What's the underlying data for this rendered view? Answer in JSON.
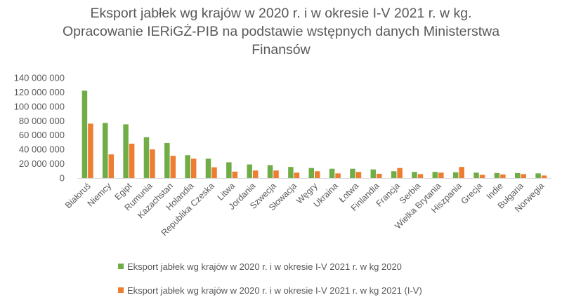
{
  "chart_data": {
    "type": "bar",
    "title_lines": [
      "Eksport jabłek wg krajów w 2020 r. i w okresie I-V 2021 r. w kg.",
      "Opracowanie IERiGŻ-PIB na podstawie wstępnych danych Ministerstwa",
      "Finansów"
    ],
    "xlabel": "",
    "ylabel": "",
    "ylim": [
      0,
      140000000
    ],
    "yticks": [
      0,
      20000000,
      40000000,
      60000000,
      80000000,
      100000000,
      120000000,
      140000000
    ],
    "ytick_labels": [
      "0",
      "20 000 000",
      "40 000 000",
      "60 000 000",
      "80 000 000",
      "100 000 000",
      "120 000 000",
      "140 000 000"
    ],
    "grid": false,
    "legend_position": "bottom",
    "categories": [
      "Białoruś",
      "Niemcy",
      "Egipt",
      "Rumunia",
      "Kazachstan",
      "Holandia",
      "Republika Czeska",
      "Litwa",
      "Jordania",
      "Szwecja",
      "Słowacja",
      "Węgry",
      "Ukraina",
      "Łotwa",
      "Finlandia",
      "Francja",
      "Serbia",
      "Wielka Brytania",
      "Hiszpania",
      "Grecja",
      "Indie",
      "Bułgaria",
      "Norwegia"
    ],
    "series": [
      {
        "name": "Eksport jabłek wg krajów w 2020 r. i w okresie I-V 2021 r. w kg 2020",
        "color": "#70ad47",
        "values": [
          122000000,
          77000000,
          75000000,
          57000000,
          49000000,
          32000000,
          27000000,
          22000000,
          19000000,
          18000000,
          15500000,
          14000000,
          13000000,
          13000000,
          12000000,
          9500000,
          8500000,
          8500000,
          8000000,
          7500000,
          7000000,
          7000000,
          6500000
        ]
      },
      {
        "name": "Eksport jabłek wg krajów w 2020 r. i w okresie I-V 2021 r. w kg 2021 (I-V)",
        "color": "#ed7d31",
        "values": [
          76000000,
          33000000,
          48000000,
          40000000,
          31000000,
          27000000,
          15000000,
          9000000,
          10500000,
          10500000,
          7500000,
          9500000,
          6500000,
          8500000,
          6000000,
          14000000,
          5500000,
          7500000,
          15500000,
          4500000,
          5000000,
          5500000,
          3500000
        ]
      }
    ]
  }
}
